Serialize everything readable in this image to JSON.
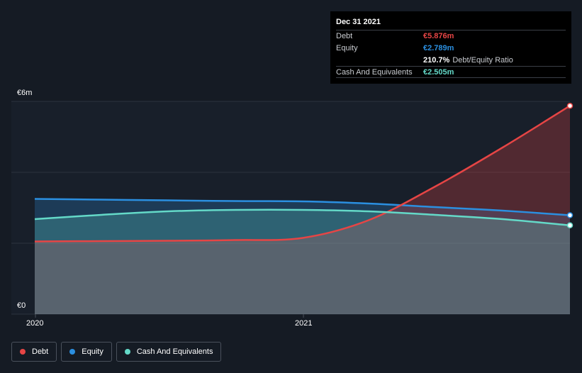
{
  "tooltip": {
    "date": "Dec 31 2021",
    "rows": [
      {
        "label": "Debt",
        "value": "€5.876m",
        "color": "#e64545"
      },
      {
        "label": "Equity",
        "value": "€2.789m",
        "color": "#2b8fe0"
      },
      {
        "label": "",
        "value": "210.7%",
        "suffix": "Debt/Equity Ratio",
        "color": "#ffffff"
      },
      {
        "label": "Cash And Equivalents",
        "value": "€2.505m",
        "color": "#64d9c8"
      }
    ]
  },
  "axes": {
    "y_top": "€6m",
    "y_bottom": "€0",
    "x_ticks": [
      "2020",
      "2021"
    ]
  },
  "legend": [
    {
      "label": "Debt",
      "color": "#e64545"
    },
    {
      "label": "Equity",
      "color": "#2b8fe0"
    },
    {
      "label": "Cash And Equivalents",
      "color": "#64d9c8"
    }
  ],
  "chart_data": {
    "type": "area",
    "x": [
      "2019-12-31",
      "2020-03-31",
      "2020-06-30",
      "2020-09-30",
      "2020-12-31",
      "2021-03-31",
      "2021-06-30",
      "2021-09-30",
      "2021-12-31"
    ],
    "series": [
      {
        "name": "Debt",
        "color": "#e64545",
        "values": [
          2.05,
          2.06,
          2.07,
          2.09,
          2.15,
          2.65,
          3.6,
          4.7,
          5.876
        ]
      },
      {
        "name": "Equity",
        "color": "#2b8fe0",
        "values": [
          3.25,
          3.23,
          3.21,
          3.19,
          3.18,
          3.12,
          3.02,
          2.92,
          2.789
        ]
      },
      {
        "name": "Cash And Equivalents",
        "color": "#64d9c8",
        "values": [
          2.68,
          2.8,
          2.9,
          2.94,
          2.94,
          2.9,
          2.8,
          2.68,
          2.505
        ]
      }
    ],
    "ylim": [
      0,
      6
    ],
    "grid": true,
    "legend": "bottom-left"
  }
}
